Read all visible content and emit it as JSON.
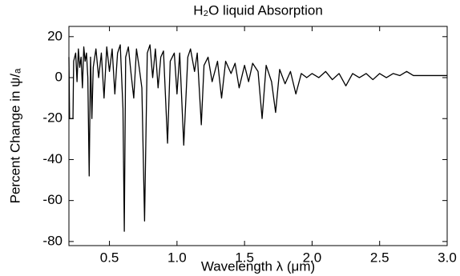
{
  "chart_data": {
    "type": "line",
    "title": "H₂O liquid Absorption",
    "xlabel": "Wavelength λ (μm)",
    "ylabel": "Percent Change in ψ/ₐ",
    "x": [
      0.2,
      0.205,
      0.23,
      0.235,
      0.25,
      0.26,
      0.27,
      0.28,
      0.29,
      0.3,
      0.31,
      0.32,
      0.33,
      0.34,
      0.35,
      0.36,
      0.37,
      0.38,
      0.4,
      0.42,
      0.44,
      0.46,
      0.48,
      0.5,
      0.52,
      0.54,
      0.56,
      0.58,
      0.6,
      0.61,
      0.62,
      0.64,
      0.66,
      0.68,
      0.7,
      0.72,
      0.74,
      0.76,
      0.78,
      0.8,
      0.82,
      0.84,
      0.86,
      0.88,
      0.9,
      0.93,
      0.95,
      0.98,
      1.0,
      1.02,
      1.05,
      1.08,
      1.1,
      1.13,
      1.15,
      1.18,
      1.2,
      1.23,
      1.26,
      1.3,
      1.33,
      1.36,
      1.4,
      1.43,
      1.46,
      1.5,
      1.53,
      1.56,
      1.6,
      1.63,
      1.66,
      1.7,
      1.73,
      1.76,
      1.8,
      1.84,
      1.88,
      1.92,
      1.96,
      2.0,
      2.05,
      2.1,
      2.15,
      2.2,
      2.25,
      2.3,
      2.35,
      2.4,
      2.45,
      2.5,
      2.55,
      2.6,
      2.65,
      2.7,
      2.75,
      2.8,
      3.0
    ],
    "series": [
      {
        "name": "H2O",
        "color": "#000000",
        "values": [
          10,
          -20,
          -20,
          8,
          12,
          -2,
          14,
          5,
          10,
          -5,
          15,
          8,
          12,
          0,
          -48,
          10,
          -20,
          5,
          14,
          0,
          12,
          -10,
          15,
          3,
          14,
          -8,
          12,
          16,
          -15,
          -75,
          10,
          15,
          2,
          -10,
          14,
          5,
          -5,
          -70,
          12,
          16,
          0,
          14,
          -5,
          10,
          13,
          -32,
          8,
          12,
          -8,
          12,
          -33,
          10,
          14,
          3,
          12,
          -23,
          6,
          10,
          -2,
          8,
          -10,
          8,
          2,
          7,
          -5,
          6,
          -2,
          7,
          3,
          -20,
          6,
          -2,
          -17,
          4,
          -3,
          3,
          -8,
          2,
          0,
          2,
          0,
          3,
          -1,
          2,
          -4,
          2,
          0,
          2,
          -1,
          2,
          0,
          2,
          1,
          3,
          1,
          1,
          1
        ]
      }
    ],
    "xlim": [
      0.2,
      3.0
    ],
    "ylim": [
      -82,
      25
    ],
    "xticks": [
      0.5,
      {
        "value": 1,
        "label": "1.0"
      },
      1.5,
      {
        "value": 2,
        "label": "2.0"
      },
      2.5,
      {
        "value": 3,
        "label": "3.0"
      }
    ],
    "yticks": [
      -80,
      -60,
      -40,
      -20,
      0,
      20
    ]
  }
}
